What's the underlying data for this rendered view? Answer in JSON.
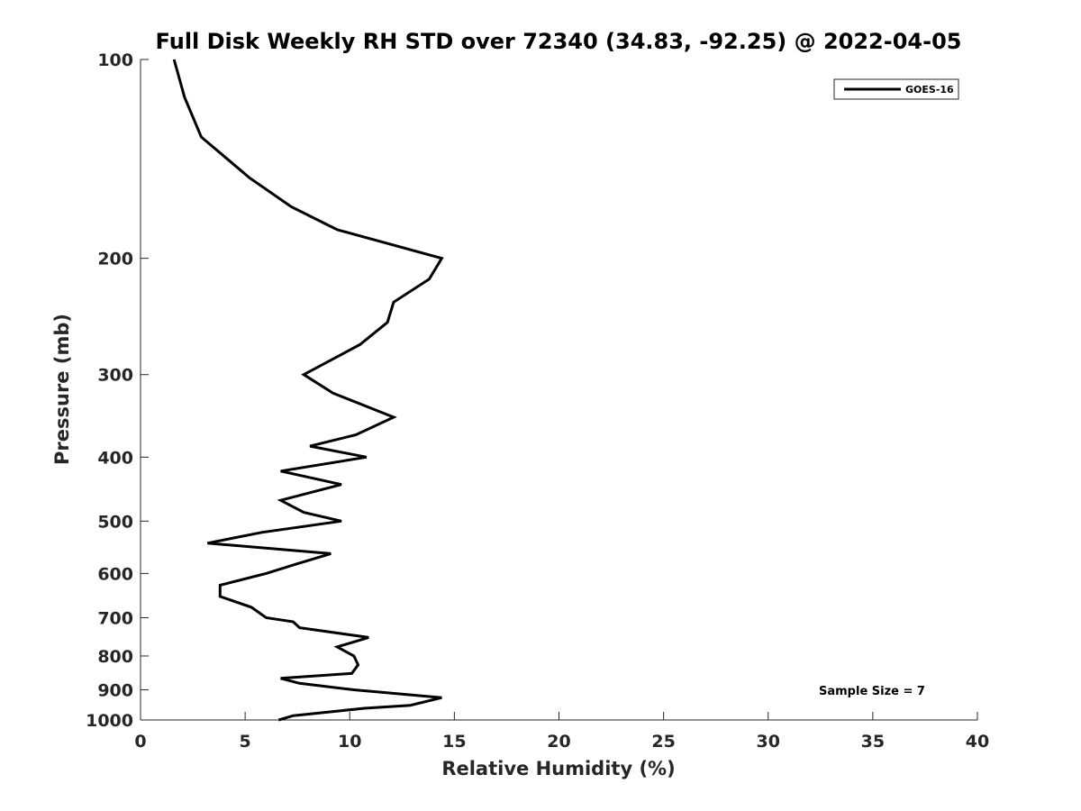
{
  "chart_data": {
    "type": "line",
    "title": "Full Disk Weekly RH STD over 72340 (34.83, -92.25) @ 2022-04-05",
    "xlabel": "Relative Humidity (%)",
    "ylabel": "Pressure (mb)",
    "xlim": [
      0,
      40
    ],
    "ylim": [
      100,
      1000
    ],
    "y_scale": "log",
    "y_inverted": true,
    "x_ticks": [
      "0",
      "5",
      "10",
      "15",
      "20",
      "25",
      "30",
      "35",
      "40"
    ],
    "y_ticks": [
      "100",
      "200",
      "300",
      "400",
      "500",
      "600",
      "700",
      "800",
      "900",
      "1000"
    ],
    "grid": false,
    "legend": {
      "position": "top-right"
    },
    "annotation": "Sample Size = 7",
    "series": [
      {
        "name": "GOES-16",
        "color": "#000000",
        "points": [
          [
            1.6,
            100
          ],
          [
            2.1,
            114
          ],
          [
            2.9,
            131
          ],
          [
            5.2,
            151
          ],
          [
            7.2,
            167
          ],
          [
            9.4,
            181
          ],
          [
            14.4,
            200
          ],
          [
            13.8,
            215
          ],
          [
            12.1,
            233
          ],
          [
            11.8,
            250
          ],
          [
            10.5,
            270
          ],
          [
            7.8,
            300
          ],
          [
            9.2,
            320
          ],
          [
            12.1,
            348
          ],
          [
            10.3,
            370
          ],
          [
            8.1,
            385
          ],
          [
            10.8,
            400
          ],
          [
            6.7,
            420
          ],
          [
            9.6,
            440
          ],
          [
            6.7,
            465
          ],
          [
            7.8,
            485
          ],
          [
            9.6,
            500
          ],
          [
            5.8,
            520
          ],
          [
            3.2,
            540
          ],
          [
            9.1,
            560
          ],
          [
            7.5,
            580
          ],
          [
            6.0,
            600
          ],
          [
            3.8,
            625
          ],
          [
            3.8,
            650
          ],
          [
            5.3,
            675
          ],
          [
            6.0,
            700
          ],
          [
            7.3,
            710
          ],
          [
            7.6,
            725
          ],
          [
            10.9,
            750
          ],
          [
            9.4,
            775
          ],
          [
            10.2,
            800
          ],
          [
            10.4,
            825
          ],
          [
            10.1,
            850
          ],
          [
            6.7,
            865
          ],
          [
            7.6,
            880
          ],
          [
            10.2,
            900
          ],
          [
            14.4,
            925
          ],
          [
            12.9,
            950
          ],
          [
            10.7,
            960
          ],
          [
            7.3,
            985
          ],
          [
            6.6,
            1000
          ]
        ]
      }
    ]
  }
}
